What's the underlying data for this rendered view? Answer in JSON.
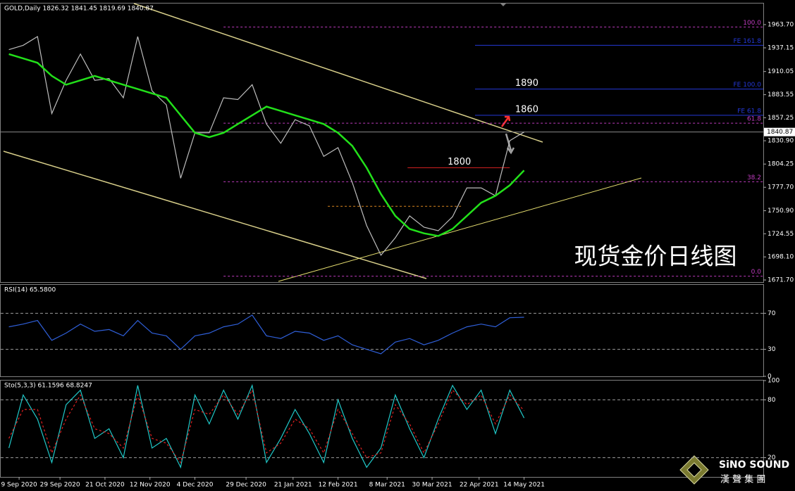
{
  "chart_data": [
    {
      "type": "line",
      "title": "GOLD,Daily  1826.32 1841.45 1819.69 1840.87",
      "xlim": [
        "2020-08-31",
        "2021-09-08"
      ],
      "ylim": [
        1669.3,
        1987.8
      ],
      "yticks": [
        {
          "value": 1963.7,
          "label": "1963.70"
        },
        {
          "value": 1937.15,
          "label": "1937.15"
        },
        {
          "value": 1910.05,
          "label": "1910.05"
        },
        {
          "value": 1883.55,
          "label": "1883.55"
        },
        {
          "value": 1857.25,
          "label": "1857.25"
        },
        {
          "value": 1830.9,
          "label": "1830.90"
        },
        {
          "value": 1804.25,
          "label": "1804.25"
        },
        {
          "value": 1777.7,
          "label": "1777.70"
        },
        {
          "value": 1750.9,
          "label": "1750.90"
        },
        {
          "value": 1724.55,
          "label": "1724.55"
        },
        {
          "value": 1698.1,
          "label": "1698.10"
        },
        {
          "value": 1671.7,
          "label": "1671.70"
        }
      ],
      "last": 1840.87,
      "x": [
        "2020-09-04",
        "2020-09-11",
        "2020-09-18",
        "2020-09-25",
        "2020-10-02",
        "2020-10-09",
        "2020-10-16",
        "2020-10-23",
        "2020-10-30",
        "2020-11-06",
        "2020-11-13",
        "2020-11-20",
        "2020-11-27",
        "2020-12-04",
        "2020-12-11",
        "2020-12-18",
        "2020-12-25",
        "2021-01-01",
        "2021-01-08",
        "2021-01-15",
        "2021-01-22",
        "2021-01-29",
        "2021-02-05",
        "2021-02-12",
        "2021-02-19",
        "2021-02-26",
        "2021-03-05",
        "2021-03-12",
        "2021-03-19",
        "2021-03-26",
        "2021-04-02",
        "2021-04-09",
        "2021-04-16",
        "2021-04-23",
        "2021-04-30",
        "2021-05-07",
        "2021-05-14"
      ],
      "series": [
        {
          "color": "#bdbdbd",
          "values": [
            1935,
            1940,
            1950,
            1862,
            1900,
            1930,
            1900,
            1902,
            1880,
            1950,
            1888,
            1872,
            1788,
            1840,
            1840,
            1880,
            1878,
            1895,
            1850,
            1828,
            1855,
            1848,
            1813,
            1823,
            1783,
            1734,
            1700,
            1720,
            1745,
            1732,
            1728,
            1744,
            1777,
            1777,
            1768,
            1831,
            1840.87
          ]
        },
        {
          "color": "#22e01a",
          "values": [
            1930,
            1925,
            1920,
            1905,
            1895,
            1900,
            1905,
            1900,
            1895,
            1890,
            1885,
            1880,
            1860,
            1840,
            1835,
            1840,
            1850,
            1860,
            1870,
            1865,
            1860,
            1855,
            1850,
            1840,
            1825,
            1800,
            1770,
            1745,
            1730,
            1725,
            1722,
            1730,
            1745,
            1760,
            1768,
            1780,
            1797
          ]
        }
      ],
      "levels": [
        {
          "label": "100.0",
          "value": 1961,
          "color": "#c03cc0",
          "dash": true,
          "start": "2020-12-18"
        },
        {
          "label": "FE 161.8",
          "value": 1940,
          "color": "#2438d8",
          "start": "2021-04-20"
        },
        {
          "label": "FE 100.0",
          "value": 1890,
          "color": "#2438d8",
          "start": "2021-04-20",
          "note": "1890"
        },
        {
          "label": "FE 61.8",
          "value": 1860,
          "color": "#2438d8",
          "start": "2021-04-20",
          "note": "1860"
        },
        {
          "label": "61.8",
          "value": 1851,
          "color": "#c03cc0",
          "dash": true,
          "start": "2020-12-18"
        },
        {
          "value": 1800,
          "color": "#d02020",
          "start": "2021-03-18",
          "end": "2021-05-07",
          "note": "1800"
        },
        {
          "label": "38.2",
          "value": 1784,
          "color": "#c03cc0",
          "dash": true,
          "start": "2020-12-18"
        },
        {
          "value": 1756,
          "color": "#e08a20",
          "dash": true,
          "start": "2021-02-07",
          "end": "2021-04-14"
        },
        {
          "label": "0.0",
          "value": 1676,
          "color": "#c03cc0",
          "dash": true,
          "start": "2020-12-18"
        }
      ]
    },
    {
      "type": "line",
      "title": "RSI(14) 65.5800",
      "xlim": [
        "2020-08-31",
        "2021-09-08"
      ],
      "ylim": [
        0,
        101.5
      ],
      "yticks": [
        70,
        30,
        0
      ],
      "x": [
        "2020-09-04",
        "2020-09-11",
        "2020-09-18",
        "2020-09-25",
        "2020-10-02",
        "2020-10-09",
        "2020-10-16",
        "2020-10-23",
        "2020-10-30",
        "2020-11-06",
        "2020-11-13",
        "2020-11-20",
        "2020-11-27",
        "2020-12-04",
        "2020-12-11",
        "2020-12-18",
        "2020-12-25",
        "2021-01-01",
        "2021-01-08",
        "2021-01-15",
        "2021-01-22",
        "2021-01-29",
        "2021-02-05",
        "2021-02-12",
        "2021-02-19",
        "2021-02-26",
        "2021-03-05",
        "2021-03-12",
        "2021-03-19",
        "2021-03-26",
        "2021-04-02",
        "2021-04-09",
        "2021-04-16",
        "2021-04-23",
        "2021-04-30",
        "2021-05-07",
        "2021-05-14"
      ],
      "series": [
        {
          "color": "#2f5fd8",
          "values": [
            55,
            58,
            62,
            40,
            48,
            58,
            50,
            52,
            45,
            62,
            48,
            45,
            30,
            45,
            48,
            55,
            58,
            68,
            45,
            42,
            50,
            48,
            40,
            45,
            35,
            30,
            25,
            38,
            42,
            35,
            40,
            48,
            55,
            58,
            55,
            65,
            65.58
          ]
        }
      ]
    },
    {
      "type": "line",
      "title": "Sto(5,3,3) 61.1596 68.8247",
      "xlim": [
        "2020-08-31",
        "2021-09-08"
      ],
      "ylim": [
        0,
        100
      ],
      "yticks": [
        100,
        80,
        20
      ],
      "xticks": [
        {
          "value": "2020-09-09",
          "label": "9 Sep 2020"
        },
        {
          "value": "2020-09-29",
          "label": "29 Sep 2020"
        },
        {
          "value": "2020-10-21",
          "label": "21 Oct 2020"
        },
        {
          "value": "2020-11-12",
          "label": "12 Nov 2020"
        },
        {
          "value": "2020-12-04",
          "label": "4 Dec 2020"
        },
        {
          "value": "2020-12-29",
          "label": "29 Dec 2020"
        },
        {
          "value": "2021-01-21",
          "label": "21 Jan 2021"
        },
        {
          "value": "2021-02-12",
          "label": "12 Feb 2021"
        },
        {
          "value": "2021-03-08",
          "label": "8 Mar 2021"
        },
        {
          "value": "2021-03-30",
          "label": "30 Mar 2021"
        },
        {
          "value": "2021-04-22",
          "label": "22 Apr 2021"
        },
        {
          "value": "2021-05-14",
          "label": "14 May 2021"
        }
      ],
      "x": [
        "2020-09-04",
        "2020-09-11",
        "2020-09-18",
        "2020-09-25",
        "2020-10-02",
        "2020-10-09",
        "2020-10-16",
        "2020-10-23",
        "2020-10-30",
        "2020-11-06",
        "2020-11-13",
        "2020-11-20",
        "2020-11-27",
        "2020-12-04",
        "2020-12-11",
        "2020-12-18",
        "2020-12-25",
        "2021-01-01",
        "2021-01-08",
        "2021-01-15",
        "2021-01-22",
        "2021-01-29",
        "2021-02-05",
        "2021-02-12",
        "2021-02-19",
        "2021-02-26",
        "2021-03-05",
        "2021-03-12",
        "2021-03-19",
        "2021-03-26",
        "2021-04-02",
        "2021-04-09",
        "2021-04-16",
        "2021-04-23",
        "2021-04-30",
        "2021-05-07",
        "2021-05-14"
      ],
      "series": [
        {
          "color": "#20c8c8",
          "values": [
            30,
            85,
            60,
            15,
            75,
            90,
            40,
            50,
            20,
            95,
            30,
            40,
            10,
            85,
            55,
            90,
            60,
            95,
            15,
            40,
            70,
            45,
            15,
            80,
            40,
            10,
            30,
            85,
            50,
            20,
            60,
            95,
            70,
            90,
            45,
            90,
            61.1596
          ]
        },
        {
          "color": "#e02020",
          "dash": true,
          "values": [
            40,
            70,
            70,
            25,
            60,
            85,
            50,
            45,
            30,
            85,
            40,
            35,
            15,
            70,
            65,
            85,
            65,
            90,
            25,
            35,
            60,
            50,
            25,
            70,
            45,
            20,
            25,
            75,
            55,
            25,
            55,
            90,
            75,
            85,
            55,
            85,
            68.8247
          ]
        }
      ]
    }
  ],
  "overlay": {
    "watermark": "现货金价日线图",
    "logo": "SiNO SOUND",
    "logo_sub": "漢 聲 集 團"
  }
}
